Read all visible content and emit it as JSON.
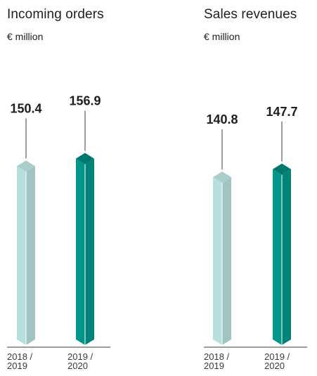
{
  "chart_data": [
    {
      "type": "bar",
      "title": "Incoming orders",
      "subtitle": "€ million",
      "categories": [
        "2018 / 2019",
        "2019 / 2020"
      ],
      "category_lines": [
        [
          "2018 /",
          "2019"
        ],
        [
          "2019 /",
          "2020"
        ]
      ],
      "values": [
        150.4,
        156.9
      ],
      "ylim": [
        0,
        170
      ],
      "colors": [
        "#b7dfdd",
        "#00958a"
      ],
      "grid": false
    },
    {
      "type": "bar",
      "title": "Sales revenues",
      "subtitle": "€ million",
      "categories": [
        "2018 / 2019",
        "2019 / 2020"
      ],
      "category_lines": [
        [
          "2018 /",
          "2019"
        ],
        [
          "2019 /",
          "2020"
        ]
      ],
      "values": [
        140.8,
        147.7
      ],
      "ylim": [
        0,
        170
      ],
      "colors": [
        "#b7dfdd",
        "#00958a"
      ],
      "grid": false
    }
  ]
}
